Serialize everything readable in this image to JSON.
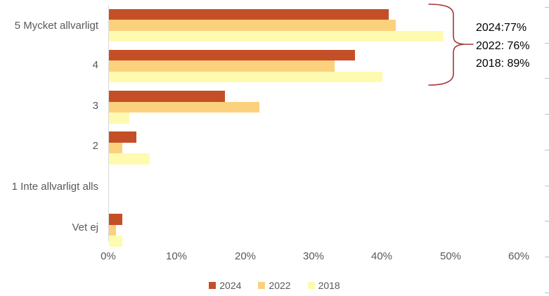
{
  "chart_data": {
    "type": "bar",
    "orientation": "horizontal",
    "title": "",
    "xlabel": "",
    "ylabel": "",
    "categories": [
      "5 Mycket allvarligt",
      "4",
      "3",
      "2",
      "1 Inte allvarligt alls",
      "Vet ej"
    ],
    "series": [
      {
        "name": "2024",
        "color": "#C44F27",
        "values": [
          41,
          36,
          17,
          4,
          0,
          2
        ]
      },
      {
        "name": "2022",
        "color": "#FCD17D",
        "values": [
          42,
          33,
          22,
          2,
          0,
          1
        ]
      },
      {
        "name": "2018",
        "color": "#FEFBB0",
        "values": [
          49,
          40,
          3,
          6,
          0,
          2
        ]
      }
    ],
    "xlim": [
      0,
      60
    ],
    "x_ticks": [
      0,
      10,
      20,
      30,
      40,
      50,
      60
    ],
    "x_tick_labels": [
      "0%",
      "10%",
      "20%",
      "30%",
      "40%",
      "50%",
      "60%"
    ],
    "grid": false,
    "legend_position": "bottom"
  },
  "annotation": {
    "lines": [
      "2024:77%",
      "2022: 76%",
      "2018: 89%"
    ],
    "brace_color": "#A4343A",
    "text_color": "#000000"
  },
  "colors": {
    "background": "#FFFFFF",
    "axis_line": "#D9D9D9",
    "label_text": "#595959",
    "edge_dash": "#BFBFBF"
  }
}
